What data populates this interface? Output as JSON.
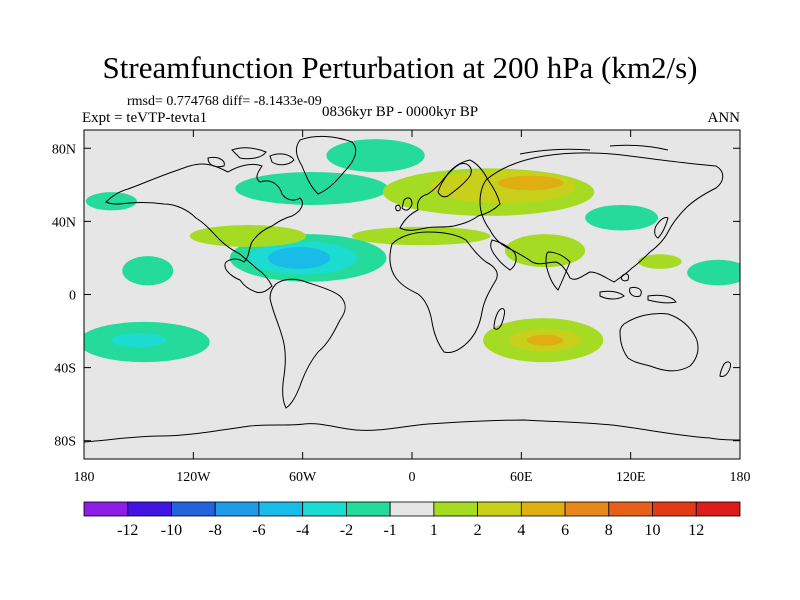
{
  "title": "Streamfunction Perturbation at 200 hPa (km2/s)",
  "stats": "rmsd= 0.774768 diff= -8.1433e-09",
  "period": "0836kyr BP - 0000kyr BP",
  "experiment": "Expt = teVTP-tevta1",
  "season": "ANN",
  "map": {
    "lon_range": [
      -180,
      180
    ],
    "lat_range": [
      -90,
      90
    ],
    "background_color": "#e6e6e6",
    "x_ticks": [
      {
        "value": -180,
        "label": "180"
      },
      {
        "value": -120,
        "label": "120W"
      },
      {
        "value": -60,
        "label": "60W"
      },
      {
        "value": 0,
        "label": "0"
      },
      {
        "value": 60,
        "label": "60E"
      },
      {
        "value": 120,
        "label": "120E"
      },
      {
        "value": 180,
        "label": "180"
      }
    ],
    "y_ticks": [
      {
        "value": 80,
        "label": "80N"
      },
      {
        "value": 40,
        "label": "40N"
      },
      {
        "value": 0,
        "label": "0"
      },
      {
        "value": -40,
        "label": "40S"
      },
      {
        "value": -80,
        "label": "80S"
      }
    ],
    "anomaly_regions": [
      {
        "name": "n-pacific-neg",
        "lon": -145,
        "lat": 13,
        "rlon": 14,
        "rlat": 8,
        "level": -1
      },
      {
        "name": "ne-pacific-neg",
        "lon": -165,
        "lat": 51,
        "rlon": 14,
        "rlat": 5,
        "level": -1
      },
      {
        "name": "s-pacific-neg",
        "lon": -147,
        "lat": -26,
        "rlon": 36,
        "rlat": 11,
        "level": -1
      },
      {
        "name": "s-pacific-core",
        "lon": -150,
        "lat": -25,
        "rlon": 15,
        "rlat": 4,
        "level": -2
      },
      {
        "name": "n-atlantic-neg",
        "lon": -55,
        "lat": 58,
        "rlon": 42,
        "rlat": 9,
        "level": -1
      },
      {
        "name": "arctic-neg",
        "lon": -20,
        "lat": 76,
        "rlon": 27,
        "rlat": 9,
        "level": -1
      },
      {
        "name": "tropical-atlantic-neg",
        "lon": -57,
        "lat": 20,
        "rlon": 43,
        "rlat": 13,
        "level": -1
      },
      {
        "name": "tropical-atlantic-mid",
        "lon": -60,
        "lat": 20,
        "rlon": 30,
        "rlat": 9,
        "level": -2
      },
      {
        "name": "tropical-atlantic-core",
        "lon": -62,
        "lat": 20,
        "rlon": 17,
        "rlat": 6,
        "level": -4
      },
      {
        "name": "e-asia-neg",
        "lon": 115,
        "lat": 42,
        "rlon": 20,
        "rlat": 7,
        "level": -1
      },
      {
        "name": "w-pacific-neg",
        "lon": 168,
        "lat": 12,
        "rlon": 17,
        "rlat": 7,
        "level": -1
      },
      {
        "name": "atlantic-pos",
        "lon": -90,
        "lat": 32,
        "rlon": 32,
        "rlat": 6,
        "level": 1
      },
      {
        "name": "mediterranean-pos",
        "lon": 5,
        "lat": 32,
        "rlon": 38,
        "rlat": 5,
        "level": 1
      },
      {
        "name": "eurasia-pos",
        "lon": 42,
        "lat": 56,
        "rlon": 58,
        "rlat": 13,
        "level": 1
      },
      {
        "name": "eurasia-mid",
        "lon": 50,
        "lat": 59,
        "rlon": 40,
        "rlat": 9,
        "level": 2
      },
      {
        "name": "eurasia-core",
        "lon": 65,
        "lat": 61,
        "rlon": 18,
        "rlat": 4,
        "level": 4
      },
      {
        "name": "arabia-pos",
        "lon": 73,
        "lat": 24,
        "rlon": 22,
        "rlat": 9,
        "level": 1
      },
      {
        "name": "s-indian-pos",
        "lon": 72,
        "lat": -25,
        "rlon": 33,
        "rlat": 12,
        "level": 1
      },
      {
        "name": "s-indian-mid",
        "lon": 73,
        "lat": -25,
        "rlon": 20,
        "rlat": 6,
        "level": 2
      },
      {
        "name": "s-indian-core",
        "lon": 73,
        "lat": -25,
        "rlon": 10,
        "rlat": 3,
        "level": 4
      },
      {
        "name": "w-pacific-pos",
        "lon": 136,
        "lat": 18,
        "rlon": 12,
        "rlat": 4,
        "level": 1
      }
    ]
  },
  "colorbar": {
    "colors": [
      "#8c1ee6",
      "#4214e1",
      "#2462de",
      "#1f9ae6",
      "#19bce9",
      "#1cdcd2",
      "#24db9c",
      "#e6e6e6",
      "#a5dc23",
      "#c8d01c",
      "#dfae12",
      "#e8881a",
      "#e6601a",
      "#e23a14",
      "#de1c1c"
    ],
    "labels": [
      "-12",
      "-10",
      "-8",
      "-6",
      "-4",
      "-2",
      "-1",
      "1",
      "2",
      "4",
      "6",
      "8",
      "10",
      "12"
    ]
  }
}
